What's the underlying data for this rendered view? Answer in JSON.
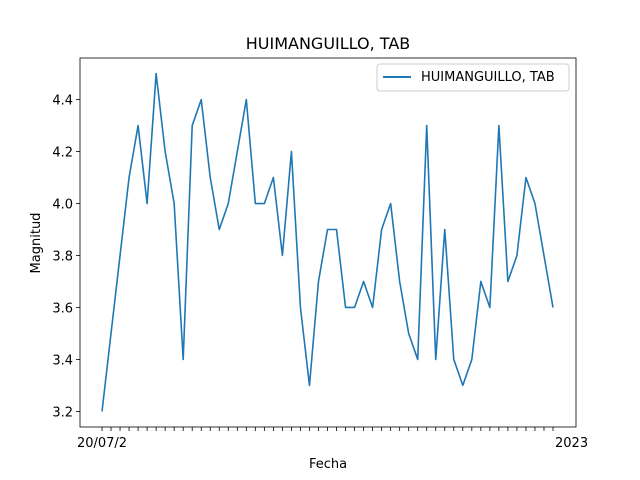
{
  "chart_data": {
    "type": "line",
    "title": "HUIMANGUILLO, TAB",
    "xlabel": "Fecha",
    "ylabel": "Magnitud",
    "ylim": [
      3.14,
      4.56
    ],
    "yticks": [
      "3.2",
      "3.4",
      "3.6",
      "3.8",
      "4.0",
      "4.2",
      "4.4"
    ],
    "x_edge_labels": {
      "first": "20/07/2",
      "last": "2023"
    },
    "legend_position": "upper right",
    "grid": false,
    "color": "#1f77b4",
    "series": [
      {
        "name": "HUIMANGUILLO, TAB",
        "values": [
          3.2,
          3.5,
          3.8,
          4.1,
          4.3,
          4.0,
          4.5,
          4.2,
          4.0,
          3.4,
          4.3,
          4.4,
          4.1,
          3.9,
          4.0,
          4.2,
          4.4,
          4.0,
          4.0,
          4.1,
          3.8,
          4.2,
          3.6,
          3.3,
          3.7,
          3.9,
          3.9,
          3.6,
          3.6,
          3.7,
          3.6,
          3.9,
          4.0,
          3.7,
          3.5,
          3.4,
          4.3,
          3.4,
          3.9,
          3.4,
          3.3,
          3.4,
          3.7,
          3.6,
          4.3,
          3.7,
          3.8,
          4.1,
          4.0,
          3.8,
          3.6
        ]
      }
    ]
  }
}
